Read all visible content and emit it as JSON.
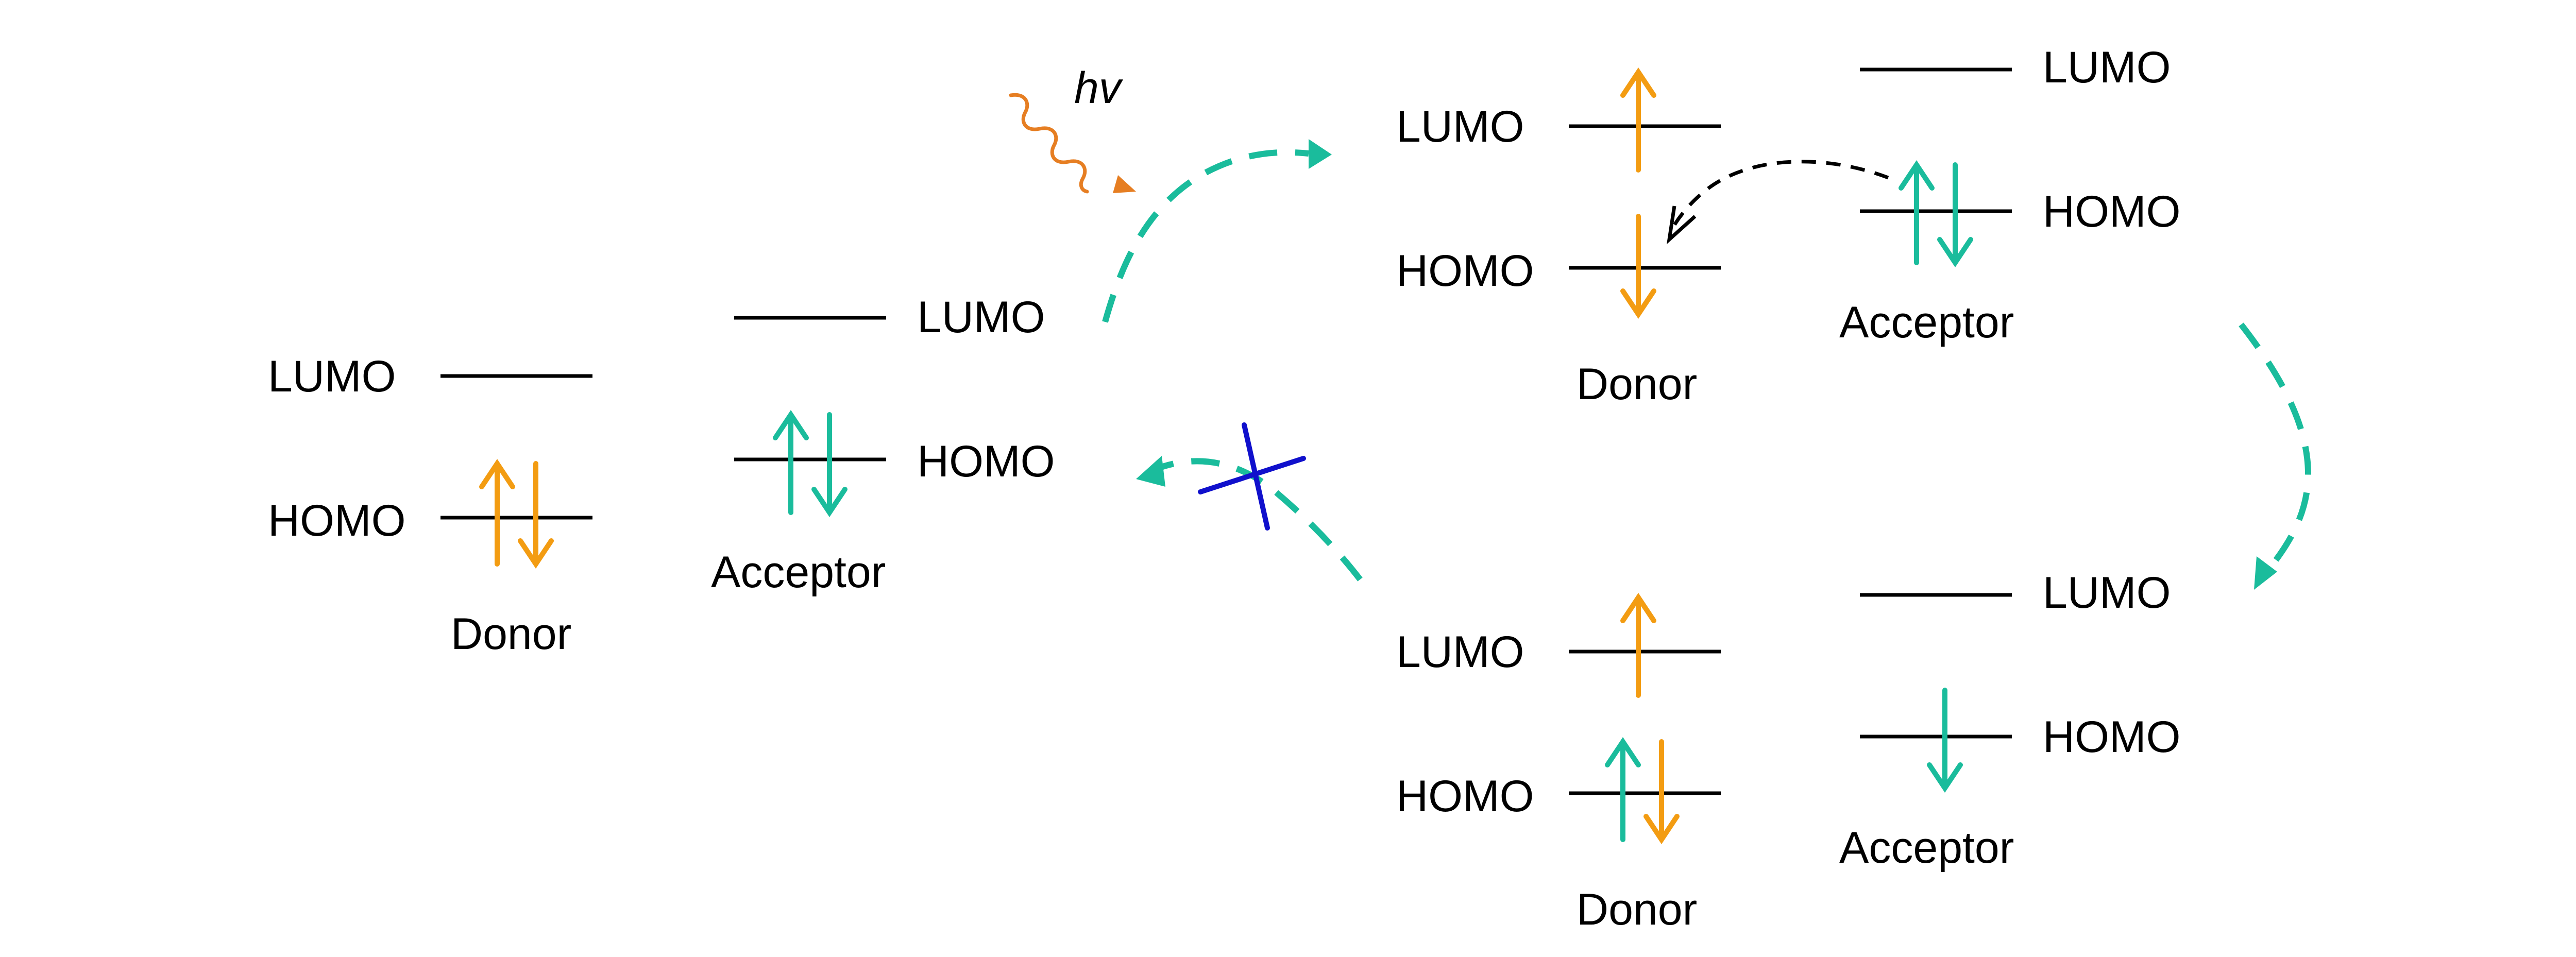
{
  "labels": {
    "lumo": "LUMO",
    "homo": "HOMO",
    "donor": "Donor",
    "acceptor": "Acceptor",
    "photon": "hv"
  },
  "colors": {
    "donor_electron": "#F39C12",
    "acceptor_electron": "#1ABC9C",
    "transfer_arrow": "#1ABC9C",
    "photon_wave": "#E67E22",
    "blocked_cross": "#1010CC",
    "hole_transfer_arrow": "#000000",
    "energy_level": "#000000"
  },
  "icons": {
    "photon": "wavy-arrow",
    "blocked": "cross-mark"
  }
}
